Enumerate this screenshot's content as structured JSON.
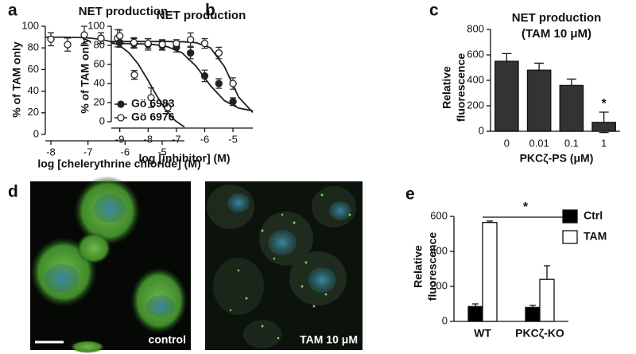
{
  "micrographs": {
    "label": "d",
    "captions": [
      "control",
      "TAM 10 μM"
    ]
  },
  "chart_data": [
    {
      "type": "scatter",
      "label": "a",
      "title": "NET production",
      "xlabel": "log [chelerythrine chloride] (M)",
      "ylabel": "% of TAM only",
      "xlim": [
        -8.15,
        -4.4
      ],
      "ylim": [
        0,
        100
      ],
      "xticks": [
        -8,
        -7,
        -6,
        -5
      ],
      "yticks": [
        0,
        20,
        40,
        60,
        80,
        100
      ],
      "series": [
        {
          "marker": "open",
          "color": "#222222",
          "x": [
            -8,
            -7.55,
            -7.1,
            -6.65,
            -6.2,
            -5.75,
            -5.3,
            -4.85
          ],
          "values": [
            88,
            83,
            92,
            89,
            89,
            55,
            34,
            25
          ],
          "errors": [
            6,
            6,
            8,
            5,
            8,
            4,
            9,
            4
          ],
          "fit": {
            "x": [
              -8.15,
              -7.9,
              -7.65,
              -7.4,
              -7.15,
              -6.9,
              -6.65,
              -6.4,
              -6.15,
              -5.9,
              -5.65,
              -5.4,
              -5.15,
              -4.9,
              -4.65,
              -4.4
            ],
            "values": [
              90,
              89.9,
              89.9,
              89.7,
              89.5,
              88.9,
              87.9,
              85.9,
              82.2,
              75.6,
              65.2,
              51.1,
              35.9,
              22.4,
              12.8,
              6.9
            ]
          }
        }
      ]
    },
    {
      "type": "scatter",
      "label": "b",
      "title": "NET production",
      "xlabel": "log [inhibitor] (M)",
      "ylabel": "% of TAM only",
      "xlim": [
        -9.3,
        -4.3
      ],
      "ylim": [
        0,
        100
      ],
      "xticks": [
        -9,
        -8,
        -7,
        -6,
        -5
      ],
      "yticks": [
        0,
        20,
        40,
        60,
        80,
        100
      ],
      "legend": "left",
      "series": [
        {
          "name": "Gö 6983",
          "marker": "filled",
          "color": "#222222",
          "x": [
            -9,
            -8.5,
            -8,
            -7.5,
            -7,
            -6.5,
            -6,
            -5.5,
            -5
          ],
          "values": [
            83,
            82,
            81,
            80,
            78,
            72,
            48,
            40,
            21
          ],
          "errors": [
            5,
            5,
            6,
            5,
            5,
            6,
            6,
            5,
            4
          ],
          "fit": {
            "x": [
              -9.3,
              -8.8,
              -8.3,
              -7.8,
              -7.3,
              -6.8,
              -6.3,
              -5.8,
              -5.3,
              -4.8,
              -4.3
            ],
            "values": [
              82,
              81.9,
              81.6,
              80.9,
              78.4,
              72.2,
              58,
              37.9,
              22,
              14.3,
              11.4
            ]
          }
        },
        {
          "name": "Gö 6976",
          "marker": "open",
          "color": "#222222",
          "x": [
            -9,
            -8.5,
            -8,
            -7.5,
            -7,
            -6.5,
            -6,
            -5.5,
            -5
          ],
          "values": [
            90,
            83,
            82,
            81,
            82,
            86,
            82,
            72,
            40
          ],
          "errors": [
            6,
            5,
            5,
            5,
            4,
            7,
            5,
            6,
            6
          ],
          "fit": {
            "x": [
              -9.3,
              -8.8,
              -8.3,
              -7.8,
              -7.3,
              -6.8,
              -6.3,
              -5.8,
              -5.3,
              -4.8,
              -4.3
            ],
            "values": [
              84,
              84,
              84,
              84,
              84,
              83.8,
              82.8,
              77.5,
              57.6,
              25.7,
              9.7
            ]
          }
        }
      ]
    },
    {
      "type": "bar",
      "label": "c",
      "title": [
        "NET production",
        "(TAM 10 μM)"
      ],
      "xlabel": "PKCζ-PS (μM)",
      "ylabel": [
        "Relative",
        "fluorescence"
      ],
      "categories": [
        "0",
        "0.01",
        "0.1",
        "1"
      ],
      "values": [
        550,
        480,
        360,
        70
      ],
      "errors": [
        60,
        55,
        50,
        80
      ],
      "color": "#333333",
      "ylim": [
        0,
        800
      ],
      "yticks": [
        0,
        200,
        400,
        600,
        800
      ],
      "significance": [
        {
          "text": "*",
          "at": "1"
        }
      ]
    },
    {
      "type": "bar",
      "label": "e",
      "ylabel": [
        "Relative",
        "fluorescence"
      ],
      "categories": [
        "WT",
        "PKCζ-KO"
      ],
      "series": [
        {
          "name": "Ctrl",
          "color": "#000000",
          "values": [
            85,
            80
          ],
          "errors": [
            15,
            12
          ]
        },
        {
          "name": "TAM",
          "color": "#ffffff",
          "values": [
            565,
            240
          ],
          "errors": [
            8,
            78
          ]
        }
      ],
      "ylim": [
        0,
        600
      ],
      "yticks": [
        0,
        200,
        400,
        600
      ],
      "legend": "right",
      "significance": [
        {
          "text": "*",
          "from": "WT",
          "to": "PKCζ-KO"
        }
      ]
    }
  ]
}
